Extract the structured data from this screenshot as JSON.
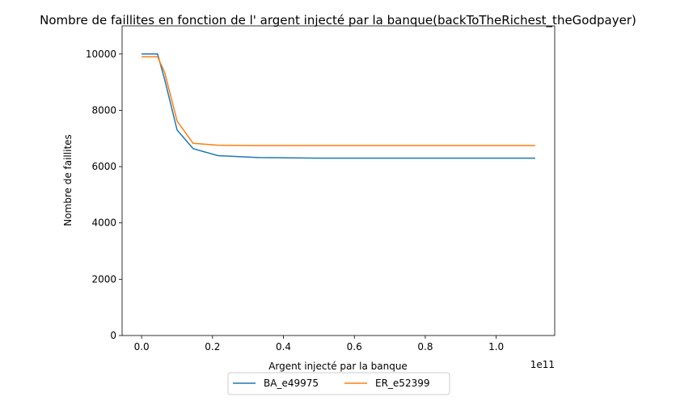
{
  "chart_data": {
    "type": "line",
    "title": "Nombre de faillites en fonction de l' argent injecté par la banque(backToTheRichest_theGodpayer)",
    "xlabel": "Argent injecté par la banque",
    "ylabel": "Nombre de faillites",
    "x_offset_text": "1e11",
    "xlim": [
      -0.055,
      1.165
    ],
    "ylim": [
      0,
      11000
    ],
    "x_ticks": [
      0.0,
      0.2,
      0.4,
      0.6,
      0.8,
      1.0
    ],
    "x_tick_labels": [
      "0.0",
      "0.2",
      "0.4",
      "0.6",
      "0.8",
      "1.0"
    ],
    "y_ticks": [
      0,
      2000,
      4000,
      6000,
      8000,
      10000
    ],
    "y_tick_labels": [
      "0",
      "2000",
      "4000",
      "6000",
      "8000",
      "10000"
    ],
    "legend_position": "bottom-center",
    "grid": false,
    "series": [
      {
        "name": "BA_e49975",
        "color": "#1f77b4",
        "x": [
          0.0,
          0.045,
          0.065,
          0.1,
          0.145,
          0.215,
          0.33,
          0.5,
          0.75,
          1.11
        ],
        "y": [
          10000,
          10000,
          9100,
          7300,
          6640,
          6390,
          6320,
          6300,
          6300,
          6300
        ]
      },
      {
        "name": "ER_e52399",
        "color": "#ff7f0e",
        "x": [
          0.0,
          0.045,
          0.065,
          0.1,
          0.145,
          0.215,
          0.33,
          0.5,
          0.75,
          1.11
        ],
        "y": [
          9900,
          9900,
          9350,
          7620,
          6830,
          6760,
          6750,
          6750,
          6750,
          6750
        ]
      }
    ]
  }
}
